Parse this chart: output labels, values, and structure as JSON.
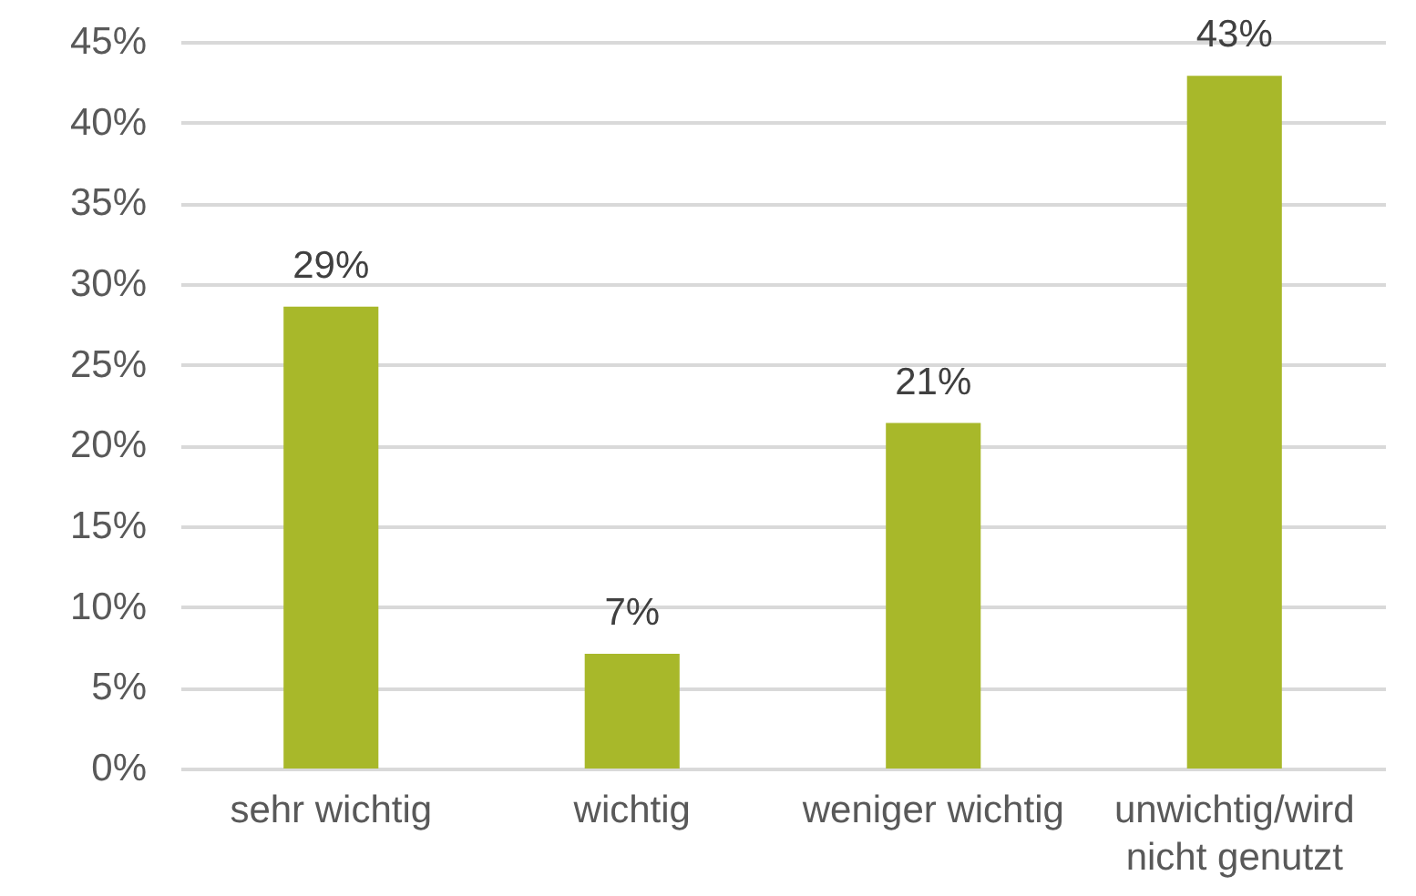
{
  "chart_data": {
    "type": "bar",
    "categories": [
      "sehr wichtig",
      "wichtig",
      "weniger wichtig",
      "unwichtig/wird nicht genutzt"
    ],
    "values": [
      28.6,
      7.1,
      21.4,
      42.9
    ],
    "value_labels": [
      "29%",
      "7%",
      "21%",
      "43%"
    ],
    "color": "#a8b82a",
    "ylim": [
      0,
      45
    ],
    "yticks": [
      {
        "value": 0,
        "label": "0%"
      },
      {
        "value": 5,
        "label": "5%"
      },
      {
        "value": 10,
        "label": "10%"
      },
      {
        "value": 15,
        "label": "15%"
      },
      {
        "value": 20,
        "label": "20%"
      },
      {
        "value": 25,
        "label": "25%"
      },
      {
        "value": 30,
        "label": "30%"
      },
      {
        "value": 35,
        "label": "35%"
      },
      {
        "value": 40,
        "label": "40%"
      },
      {
        "value": 45,
        "label": "45%"
      }
    ],
    "grid": true
  }
}
